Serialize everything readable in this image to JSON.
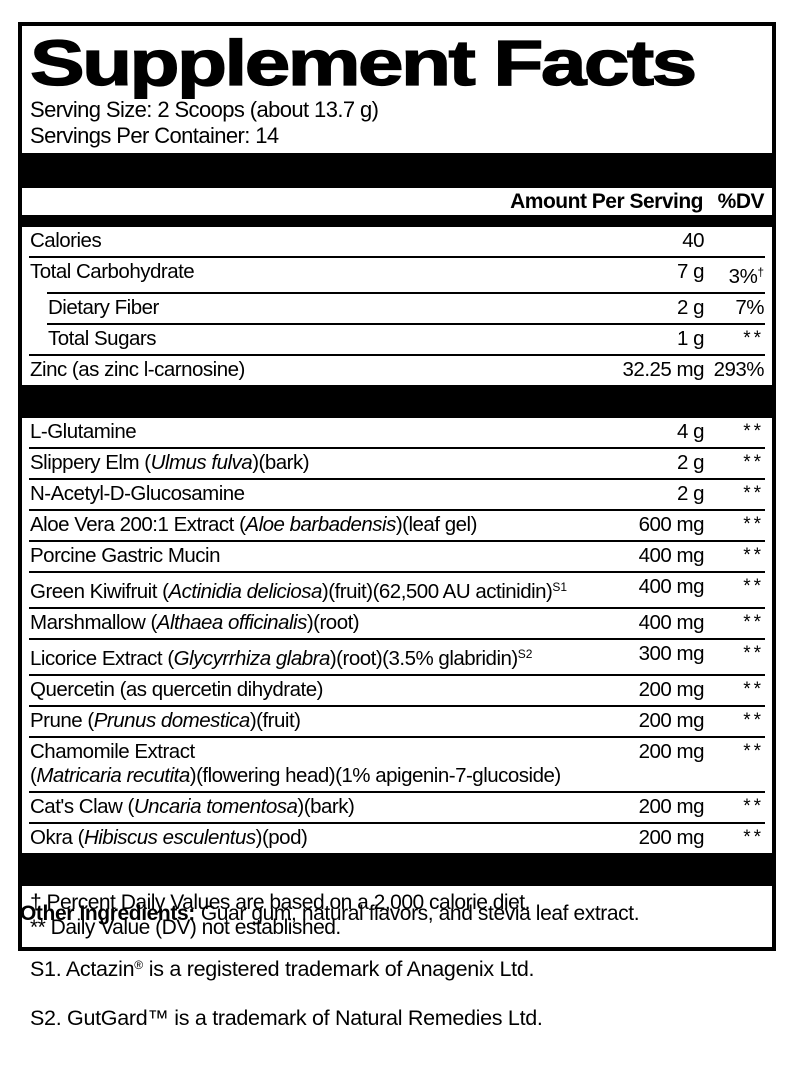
{
  "colors": {
    "ink": "#000000",
    "paper": "#ffffff"
  },
  "panel": {
    "title": "Supplement Facts",
    "serving_size": "Serving Size: 2 Scoops (about 13.7 g)",
    "servings_per_container": "Servings Per Container: 14",
    "column_headers": {
      "amount": "Amount Per Serving",
      "dv": "%DV"
    },
    "sections": [
      {
        "rows": [
          {
            "name_parts": [
              {
                "t": "Calories"
              }
            ],
            "amount": "40",
            "dv": ""
          },
          {
            "name_parts": [
              {
                "t": "Total Carbohydrate"
              }
            ],
            "amount": "7 g",
            "dv_parts": [
              {
                "t": "3%"
              },
              {
                "t": "†",
                "sup": true
              }
            ]
          },
          {
            "name_parts": [
              {
                "t": "Dietary Fiber"
              }
            ],
            "amount": "2 g",
            "dv": "7%",
            "indent": true
          },
          {
            "name_parts": [
              {
                "t": "Total Sugars"
              }
            ],
            "amount": "1 g",
            "dv": "**",
            "indent": true
          },
          {
            "name_parts": [
              {
                "t": "Zinc (as zinc l-carnosine)"
              }
            ],
            "amount": "32.25 mg",
            "dv": "293%"
          }
        ]
      },
      {
        "rows": [
          {
            "name_parts": [
              {
                "t": "L-Glutamine"
              }
            ],
            "amount": "4 g",
            "dv": "**"
          },
          {
            "name_parts": [
              {
                "t": "Slippery Elm ("
              },
              {
                "t": "Ulmus fulva",
                "i": true
              },
              {
                "t": ")(bark)"
              }
            ],
            "amount": "2 g",
            "dv": "**"
          },
          {
            "name_parts": [
              {
                "t": "N-Acetyl-D-Glucosamine"
              }
            ],
            "amount": "2 g",
            "dv": "**"
          },
          {
            "name_parts": [
              {
                "t": "Aloe Vera 200:1 Extract ("
              },
              {
                "t": "Aloe barbadensis",
                "i": true
              },
              {
                "t": ")(leaf gel)"
              }
            ],
            "amount": "600 mg",
            "dv": "**"
          },
          {
            "name_parts": [
              {
                "t": "Porcine Gastric Mucin"
              }
            ],
            "amount": "400 mg",
            "dv": "**"
          },
          {
            "name_parts": [
              {
                "t": "Green Kiwifruit ("
              },
              {
                "t": "Actinidia deliciosa",
                "i": true
              },
              {
                "t": ")(fruit)(62,500 AU actinidin)"
              },
              {
                "t": "S1",
                "sup": true
              }
            ],
            "amount": "400 mg",
            "dv": "**"
          },
          {
            "name_parts": [
              {
                "t": "Marshmallow ("
              },
              {
                "t": "Althaea officinalis",
                "i": true
              },
              {
                "t": ")(root)"
              }
            ],
            "amount": "400 mg",
            "dv": "**"
          },
          {
            "name_parts": [
              {
                "t": "Licorice Extract ("
              },
              {
                "t": "Glycyrrhiza glabra",
                "i": true
              },
              {
                "t": ")(root)(3.5% glabridin)"
              },
              {
                "t": "S2",
                "sup": true
              }
            ],
            "amount": "300 mg",
            "dv": "**"
          },
          {
            "name_parts": [
              {
                "t": "Quercetin (as quercetin dihydrate)"
              }
            ],
            "amount": "200 mg",
            "dv": "**"
          },
          {
            "name_parts": [
              {
                "t": "Prune ("
              },
              {
                "t": "Prunus domestica",
                "i": true
              },
              {
                "t": ")(fruit)"
              }
            ],
            "amount": "200 mg",
            "dv": "**"
          },
          {
            "name_parts": [
              {
                "t": "Chamomile Extract"
              }
            ],
            "name_parts2": [
              {
                "t": "("
              },
              {
                "t": "Matricaria recutita",
                "i": true
              },
              {
                "t": ")(flowering head)(1% apigenin-7-glucoside)"
              }
            ],
            "amount": "200 mg",
            "dv": "**"
          },
          {
            "name_parts": [
              {
                "t": "Cat's Claw ("
              },
              {
                "t": "Uncaria tomentosa",
                "i": true
              },
              {
                "t": ")(bark)"
              }
            ],
            "amount": "200 mg",
            "dv": "**"
          },
          {
            "name_parts": [
              {
                "t": "Okra ("
              },
              {
                "t": "Hibiscus esculentus",
                "i": true
              },
              {
                "t": ")(pod)"
              }
            ],
            "amount": "200 mg",
            "dv": "**"
          }
        ]
      }
    ],
    "footnotes": [
      "† Percent Daily Values are based on a 2,000 calorie diet.",
      "** Daily Value (DV) not established."
    ]
  },
  "below": {
    "other_ingredients_label": "Other Ingredients:",
    "other_ingredients_text": "Guar gum, natural flavors, and stevia leaf extract.",
    "trademark_lines": [
      {
        "parts": [
          {
            "t": "S1. Actazin"
          },
          {
            "t": "®",
            "sup": true
          },
          {
            "t": " is a registered trademark of Anagenix Ltd."
          }
        ]
      },
      {
        "parts": [
          {
            "t": "S2. GutGard"
          },
          {
            "t": "™"
          },
          {
            "t": " is a trademark of Natural Remedies Ltd."
          }
        ]
      }
    ]
  }
}
